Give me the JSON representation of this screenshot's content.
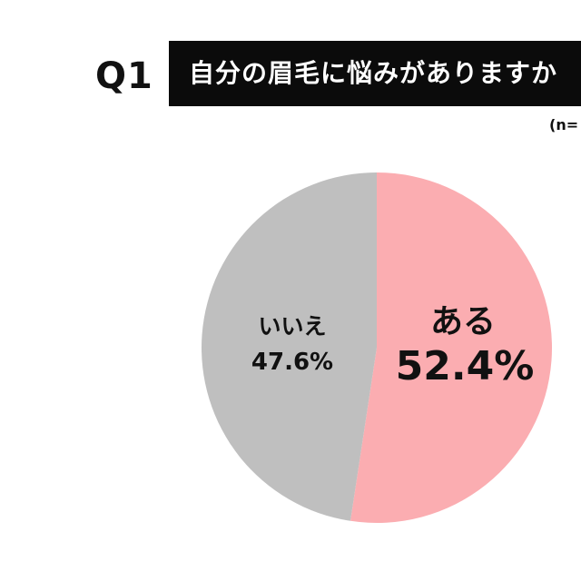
{
  "header": {
    "question_no": "Q1",
    "question_text": "自分の眉毛に悩みがありますか",
    "sample_note": "(n="
  },
  "chart_data": {
    "type": "pie",
    "title": "",
    "slices": [
      {
        "label": "ある",
        "value": 52.4,
        "value_label": "52.4%",
        "color": "#fbadb1"
      },
      {
        "label": "いいえ",
        "value": 47.6,
        "value_label": "47.6%",
        "color": "#bfbfbf"
      }
    ],
    "start_angle": "12 o'clock",
    "direction": "clockwise",
    "legend": "none"
  }
}
